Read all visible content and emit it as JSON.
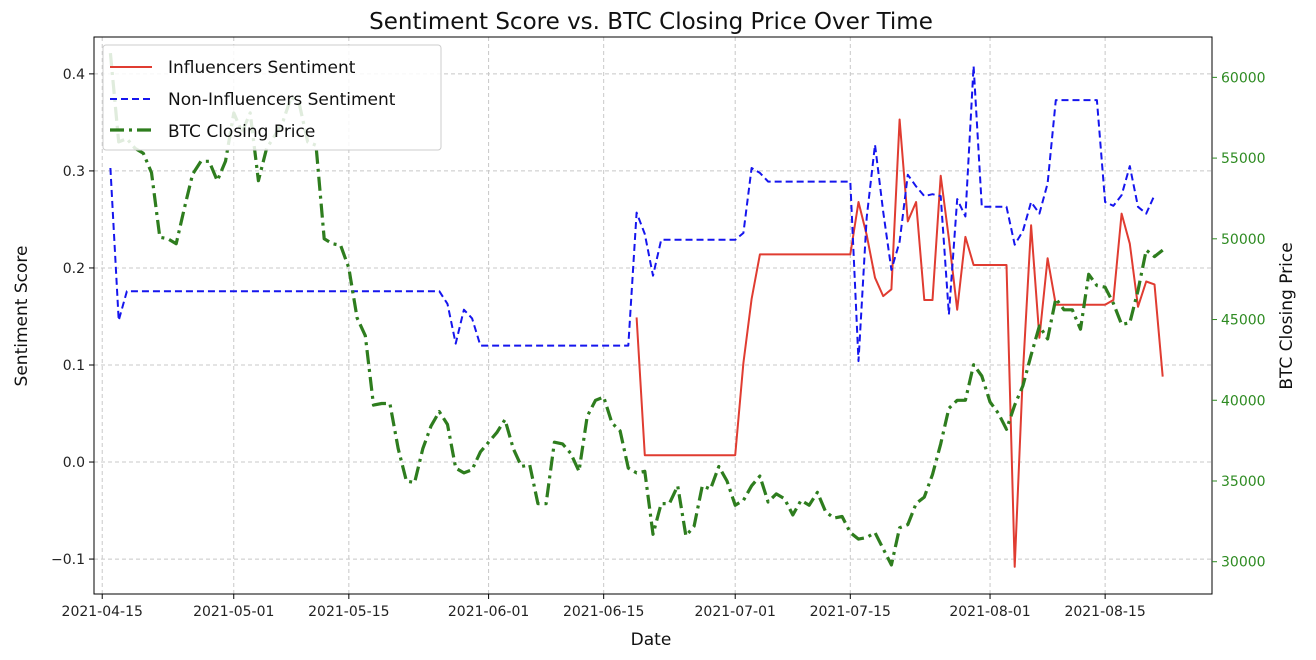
{
  "chart_data": {
    "type": "line",
    "title": "Sentiment Score vs. BTC Closing Price Over Time",
    "xlabel": "Date",
    "ylabel": "Sentiment Score",
    "y2label": "BTC Closing Price",
    "x_ticks": [
      "2021-04-15",
      "2021-05-01",
      "2021-05-15",
      "2021-06-01",
      "2021-06-15",
      "2021-07-01",
      "2021-07-15",
      "2021-08-01",
      "2021-08-15"
    ],
    "xlim": [
      "2021-04-14",
      "2021-08-28"
    ],
    "ylim": [
      -0.136,
      0.438
    ],
    "y_ticks": [
      -0.1,
      0.0,
      0.1,
      0.2,
      0.3,
      0.4
    ],
    "y_tick_labels": [
      "−0.1",
      "0.0",
      "0.1",
      "0.2",
      "0.3",
      "0.4"
    ],
    "y2lim": [
      28000,
      62500
    ],
    "y2_ticks": [
      30000,
      35000,
      40000,
      45000,
      50000,
      55000,
      60000
    ],
    "grid": true,
    "legend_position": "upper-left",
    "colors": {
      "influencers": "#e03c31",
      "non_influencers": "#1515ee",
      "btc": "#2e7d1e",
      "axis_right": "#2e8b22",
      "grid": "#c8c8c8"
    },
    "series": [
      {
        "name": "Influencers Sentiment",
        "axis": "left",
        "style": "solid",
        "points": [
          [
            "2021-06-19",
            0.149
          ],
          [
            "2021-06-20",
            0.007
          ],
          [
            "2021-06-21",
            0.007
          ],
          [
            "2021-06-30",
            0.007
          ],
          [
            "2021-07-01",
            0.007
          ],
          [
            "2021-07-02",
            0.102
          ],
          [
            "2021-07-03",
            0.168
          ],
          [
            "2021-07-04",
            0.214
          ],
          [
            "2021-07-05",
            0.214
          ],
          [
            "2021-07-15",
            0.214
          ],
          [
            "2021-07-16",
            0.268
          ],
          [
            "2021-07-17",
            0.234
          ],
          [
            "2021-07-18",
            0.19
          ],
          [
            "2021-07-19",
            0.171
          ],
          [
            "2021-07-20",
            0.178
          ],
          [
            "2021-07-21",
            0.353
          ],
          [
            "2021-07-22",
            0.248
          ],
          [
            "2021-07-23",
            0.268
          ],
          [
            "2021-07-24",
            0.167
          ],
          [
            "2021-07-25",
            0.167
          ],
          [
            "2021-07-26",
            0.295
          ],
          [
            "2021-07-27",
            0.23
          ],
          [
            "2021-07-28",
            0.157
          ],
          [
            "2021-07-29",
            0.232
          ],
          [
            "2021-07-30",
            0.203
          ],
          [
            "2021-08-03",
            0.203
          ],
          [
            "2021-08-04",
            -0.108
          ],
          [
            "2021-08-05",
            0.092
          ],
          [
            "2021-08-06",
            0.244
          ],
          [
            "2021-08-07",
            0.128
          ],
          [
            "2021-08-08",
            0.21
          ],
          [
            "2021-08-09",
            0.162
          ],
          [
            "2021-08-15",
            0.162
          ],
          [
            "2021-08-16",
            0.167
          ],
          [
            "2021-08-17",
            0.256
          ],
          [
            "2021-08-18",
            0.225
          ],
          [
            "2021-08-19",
            0.16
          ],
          [
            "2021-08-20",
            0.186
          ],
          [
            "2021-08-21",
            0.183
          ],
          [
            "2021-08-22",
            0.088
          ]
        ]
      },
      {
        "name": "Non-Influencers Sentiment",
        "axis": "left",
        "style": "dashed",
        "points": [
          [
            "2021-04-16",
            0.303
          ],
          [
            "2021-04-17",
            0.146
          ],
          [
            "2021-04-18",
            0.176
          ],
          [
            "2021-05-26",
            0.176
          ],
          [
            "2021-05-27",
            0.163
          ],
          [
            "2021-05-28",
            0.122
          ],
          [
            "2021-05-29",
            0.157
          ],
          [
            "2021-05-30",
            0.148
          ],
          [
            "2021-05-31",
            0.12
          ],
          [
            "2021-06-18",
            0.12
          ],
          [
            "2021-06-19",
            0.257
          ],
          [
            "2021-06-20",
            0.235
          ],
          [
            "2021-06-21",
            0.192
          ],
          [
            "2021-06-22",
            0.229
          ],
          [
            "2021-07-01",
            0.229
          ],
          [
            "2021-07-02",
            0.236
          ],
          [
            "2021-07-03",
            0.303
          ],
          [
            "2021-07-04",
            0.298
          ],
          [
            "2021-07-05",
            0.289
          ],
          [
            "2021-07-15",
            0.289
          ],
          [
            "2021-07-16",
            0.104
          ],
          [
            "2021-07-17",
            0.252
          ],
          [
            "2021-07-18",
            0.327
          ],
          [
            "2021-07-19",
            0.258
          ],
          [
            "2021-07-20",
            0.198
          ],
          [
            "2021-07-21",
            0.227
          ],
          [
            "2021-07-22",
            0.296
          ],
          [
            "2021-07-23",
            0.284
          ],
          [
            "2021-07-24",
            0.274
          ],
          [
            "2021-07-25",
            0.276
          ],
          [
            "2021-07-26",
            0.274
          ],
          [
            "2021-07-27",
            0.152
          ],
          [
            "2021-07-28",
            0.271
          ],
          [
            "2021-07-29",
            0.253
          ],
          [
            "2021-07-30",
            0.408
          ],
          [
            "2021-07-31",
            0.263
          ],
          [
            "2021-08-03",
            0.263
          ],
          [
            "2021-08-04",
            0.224
          ],
          [
            "2021-08-05",
            0.238
          ],
          [
            "2021-08-06",
            0.268
          ],
          [
            "2021-08-07",
            0.256
          ],
          [
            "2021-08-08",
            0.287
          ],
          [
            "2021-08-09",
            0.373
          ],
          [
            "2021-08-14",
            0.373
          ],
          [
            "2021-08-15",
            0.268
          ],
          [
            "2021-08-16",
            0.264
          ],
          [
            "2021-08-17",
            0.275
          ],
          [
            "2021-08-18",
            0.305
          ],
          [
            "2021-08-19",
            0.263
          ],
          [
            "2021-08-20",
            0.256
          ],
          [
            "2021-08-21",
            0.275
          ]
        ]
      },
      {
        "name": "BTC Closing Price",
        "axis": "right",
        "style": "dashdot",
        "points": [
          [
            "2021-04-16",
            61500
          ],
          [
            "2021-04-17",
            56000
          ],
          [
            "2021-04-18",
            56200
          ],
          [
            "2021-04-19",
            55600
          ],
          [
            "2021-04-20",
            55300
          ],
          [
            "2021-04-21",
            54100
          ],
          [
            "2021-04-22",
            50100
          ],
          [
            "2021-04-23",
            50000
          ],
          [
            "2021-04-24",
            49700
          ],
          [
            "2021-04-25",
            51900
          ],
          [
            "2021-04-26",
            54000
          ],
          [
            "2021-04-27",
            54800
          ],
          [
            "2021-04-28",
            54800
          ],
          [
            "2021-04-29",
            53600
          ],
          [
            "2021-04-30",
            54800
          ],
          [
            "2021-05-01",
            57800
          ],
          [
            "2021-05-02",
            56600
          ],
          [
            "2021-05-03",
            57800
          ],
          [
            "2021-05-04",
            53600
          ],
          [
            "2021-05-05",
            55600
          ],
          [
            "2021-05-06",
            56400
          ],
          [
            "2021-05-07",
            57300
          ],
          [
            "2021-05-08",
            58800
          ],
          [
            "2021-05-09",
            58300
          ],
          [
            "2021-05-10",
            56000
          ],
          [
            "2021-05-11",
            55800
          ],
          [
            "2021-05-12",
            50000
          ],
          [
            "2021-05-13",
            49700
          ],
          [
            "2021-05-14",
            49600
          ],
          [
            "2021-05-15",
            48200
          ],
          [
            "2021-05-16",
            45100
          ],
          [
            "2021-05-17",
            44000
          ],
          [
            "2021-05-18",
            39700
          ],
          [
            "2021-05-19",
            39800
          ],
          [
            "2021-05-20",
            39800
          ],
          [
            "2021-05-21",
            37000
          ],
          [
            "2021-05-22",
            35000
          ],
          [
            "2021-05-23",
            34900
          ],
          [
            "2021-05-24",
            37000
          ],
          [
            "2021-05-25",
            38400
          ],
          [
            "2021-05-26",
            39300
          ],
          [
            "2021-05-27",
            38500
          ],
          [
            "2021-05-28",
            35800
          ],
          [
            "2021-05-29",
            35500
          ],
          [
            "2021-05-30",
            35700
          ],
          [
            "2021-05-31",
            36800
          ],
          [
            "2021-06-01",
            37400
          ],
          [
            "2021-06-02",
            38000
          ],
          [
            "2021-06-03",
            38800
          ],
          [
            "2021-06-04",
            37000
          ],
          [
            "2021-06-05",
            35900
          ],
          [
            "2021-06-06",
            36000
          ],
          [
            "2021-06-07",
            33600
          ],
          [
            "2021-06-08",
            33600
          ],
          [
            "2021-06-09",
            37400
          ],
          [
            "2021-06-10",
            37300
          ],
          [
            "2021-06-11",
            36700
          ],
          [
            "2021-06-12",
            35600
          ],
          [
            "2021-06-13",
            39000
          ],
          [
            "2021-06-14",
            40000
          ],
          [
            "2021-06-15",
            40200
          ],
          [
            "2021-06-16",
            38600
          ],
          [
            "2021-06-17",
            38100
          ],
          [
            "2021-06-18",
            35800
          ],
          [
            "2021-06-19",
            35500
          ],
          [
            "2021-06-20",
            35600
          ],
          [
            "2021-06-21",
            31700
          ],
          [
            "2021-06-22",
            33600
          ],
          [
            "2021-06-23",
            33600
          ],
          [
            "2021-06-24",
            34700
          ],
          [
            "2021-06-25",
            31600
          ],
          [
            "2021-06-26",
            32200
          ],
          [
            "2021-06-27",
            34700
          ],
          [
            "2021-06-28",
            34500
          ],
          [
            "2021-06-29",
            35900
          ],
          [
            "2021-06-30",
            35000
          ],
          [
            "2021-07-01",
            33500
          ],
          [
            "2021-07-02",
            33800
          ],
          [
            "2021-07-03",
            34700
          ],
          [
            "2021-07-04",
            35300
          ],
          [
            "2021-07-05",
            33700
          ],
          [
            "2021-07-06",
            34200
          ],
          [
            "2021-07-07",
            33900
          ],
          [
            "2021-07-08",
            32900
          ],
          [
            "2021-07-09",
            33800
          ],
          [
            "2021-07-10",
            33500
          ],
          [
            "2021-07-11",
            34300
          ],
          [
            "2021-07-12",
            33100
          ],
          [
            "2021-07-13",
            32700
          ],
          [
            "2021-07-14",
            32800
          ],
          [
            "2021-07-15",
            31800
          ],
          [
            "2021-07-16",
            31400
          ],
          [
            "2021-07-17",
            31500
          ],
          [
            "2021-07-18",
            31800
          ],
          [
            "2021-07-19",
            30800
          ],
          [
            "2021-07-20",
            29800
          ],
          [
            "2021-07-21",
            32100
          ],
          [
            "2021-07-22",
            32300
          ],
          [
            "2021-07-23",
            33600
          ],
          [
            "2021-07-24",
            34000
          ],
          [
            "2021-07-25",
            35400
          ],
          [
            "2021-07-26",
            37300
          ],
          [
            "2021-07-27",
            39500
          ],
          [
            "2021-07-28",
            40000
          ],
          [
            "2021-07-29",
            40000
          ],
          [
            "2021-07-30",
            42200
          ],
          [
            "2021-07-31",
            41500
          ],
          [
            "2021-08-01",
            39900
          ],
          [
            "2021-08-02",
            39200
          ],
          [
            "2021-08-03",
            38200
          ],
          [
            "2021-08-04",
            39700
          ],
          [
            "2021-08-05",
            40900
          ],
          [
            "2021-08-06",
            42800
          ],
          [
            "2021-08-07",
            44600
          ],
          [
            "2021-08-08",
            43800
          ],
          [
            "2021-08-09",
            46300
          ],
          [
            "2021-08-10",
            45600
          ],
          [
            "2021-08-11",
            45600
          ],
          [
            "2021-08-12",
            44400
          ],
          [
            "2021-08-13",
            47800
          ],
          [
            "2021-08-14",
            47100
          ],
          [
            "2021-08-15",
            47000
          ],
          [
            "2021-08-16",
            46000
          ],
          [
            "2021-08-17",
            44700
          ],
          [
            "2021-08-18",
            44800
          ],
          [
            "2021-08-19",
            46800
          ],
          [
            "2021-08-20",
            49300
          ],
          [
            "2021-08-21",
            48900
          ],
          [
            "2021-08-22",
            49300
          ]
        ]
      }
    ]
  }
}
